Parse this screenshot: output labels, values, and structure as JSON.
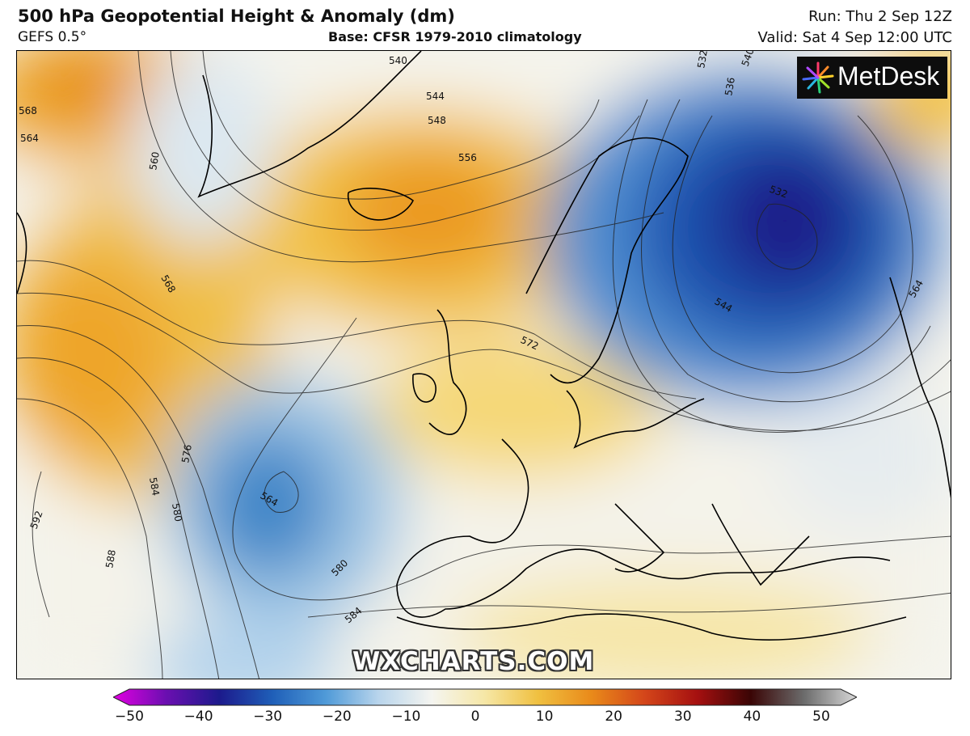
{
  "header": {
    "title": "500 hPa Geopotential Height & Anomaly (dm)",
    "model": "GEFS 0.5°",
    "base": "Base: CFSR 1979-2010 climatology",
    "run": "Run: Thu 2 Sep 12Z",
    "valid": "Valid: Sat 4 Sep 12:00 UTC"
  },
  "logo": {
    "text": "MetDesk"
  },
  "watermark": "WXCHARTS.COM",
  "contour_labels": [
    "540",
    "544",
    "548",
    "556",
    "568",
    "564",
    "560",
    "568",
    "572",
    "576",
    "580",
    "584",
    "592",
    "588",
    "564",
    "580",
    "584",
    "532",
    "536",
    "540",
    "544",
    "564",
    "532"
  ],
  "colorbar": {
    "ticks": [
      "−50",
      "−40",
      "−30",
      "−20",
      "−10",
      "0",
      "10",
      "20",
      "30",
      "40",
      "50"
    ],
    "stops": [
      "#e100e1",
      "#6a0fb0",
      "#1c1a8c",
      "#1f5fb8",
      "#4f9ad8",
      "#b9d5ec",
      "#f5f5f0",
      "#f6e7a6",
      "#f0c040",
      "#e98a1a",
      "#d4461a",
      "#a51010",
      "#3a0505",
      "#6b6b6b",
      "#d8d8d8"
    ]
  }
}
